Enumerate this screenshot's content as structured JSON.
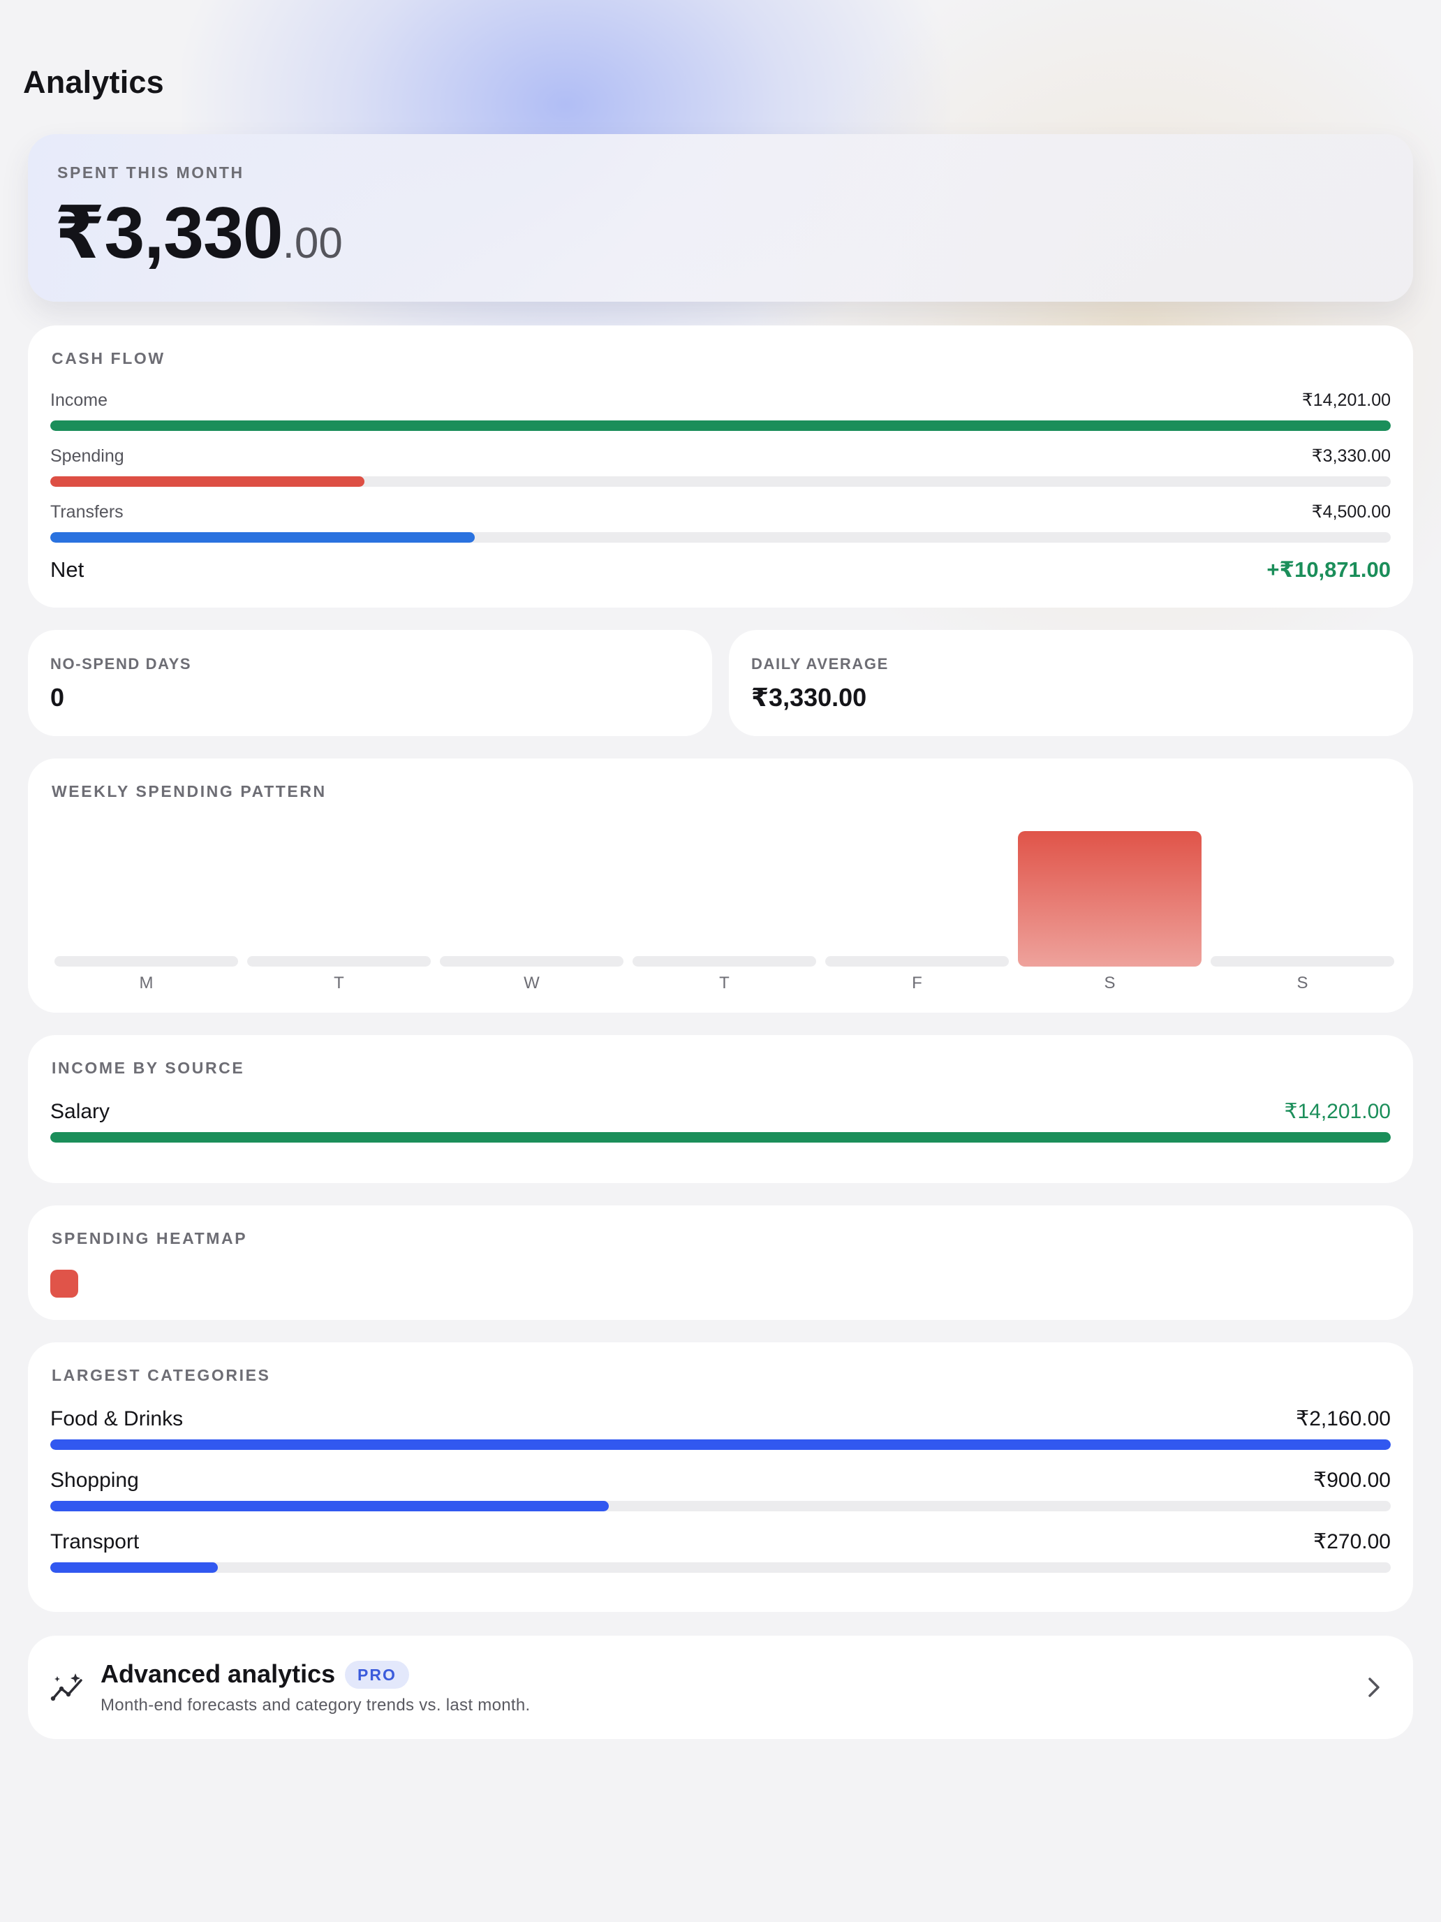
{
  "page": {
    "title": "Analytics"
  },
  "hero": {
    "label": "SPENT THIS MONTH",
    "amount_main": "₹3,330",
    "amount_cents": ".00"
  },
  "cash_flow": {
    "label": "CASH FLOW",
    "rows": [
      {
        "name": "Income",
        "value": "₹14,201.00",
        "fraction": 1.0,
        "color": "#1b8e5a"
      },
      {
        "name": "Spending",
        "value": "₹3,330.00",
        "fraction": 0.2345,
        "color": "#dd4f44"
      },
      {
        "name": "Transfers",
        "value": "₹4,500.00",
        "fraction": 0.3169,
        "color": "#2a72df"
      }
    ],
    "net_label": "Net",
    "net_value": "+₹10,871.00"
  },
  "stats": {
    "no_spend": {
      "label": "NO-SPEND DAYS",
      "value": "0"
    },
    "daily_avg": {
      "label": "DAILY AVERAGE",
      "value": "₹3,330.00"
    }
  },
  "weekly": {
    "label": "WEEKLY SPENDING PATTERN"
  },
  "chart_data": {
    "type": "bar",
    "categories": [
      "M",
      "T",
      "W",
      "T",
      "F",
      "S",
      "S"
    ],
    "values": [
      0,
      0,
      0,
      0,
      0,
      3330,
      0
    ],
    "ylim": [
      0,
      3330
    ],
    "bar_color": "#e05449",
    "grid": false
  },
  "income_by_source": {
    "label": "INCOME BY SOURCE",
    "rows": [
      {
        "name": "Salary",
        "value": "₹14,201.00",
        "fraction": 1.0,
        "color": "#1b8e5a"
      }
    ]
  },
  "heatmap": {
    "label": "SPENDING HEATMAP",
    "cells": [
      {
        "intensity": 1.0,
        "color": "#e05449"
      }
    ]
  },
  "largest_categories": {
    "label": "LARGEST CATEGORIES",
    "rows": [
      {
        "name": "Food & Drinks",
        "value": "₹2,160.00",
        "fraction": 1.0,
        "color": "#3158f0"
      },
      {
        "name": "Shopping",
        "value": "₹900.00",
        "fraction": 0.4167,
        "color": "#3158f0"
      },
      {
        "name": "Transport",
        "value": "₹270.00",
        "fraction": 0.125,
        "color": "#3158f0"
      }
    ]
  },
  "advanced": {
    "title": "Advanced analytics",
    "badge": "PRO",
    "subtitle": "Month-end forecasts and category trends vs. last month.",
    "icon": "sparkle-trend-icon",
    "chevron": "chevron-right-icon"
  }
}
